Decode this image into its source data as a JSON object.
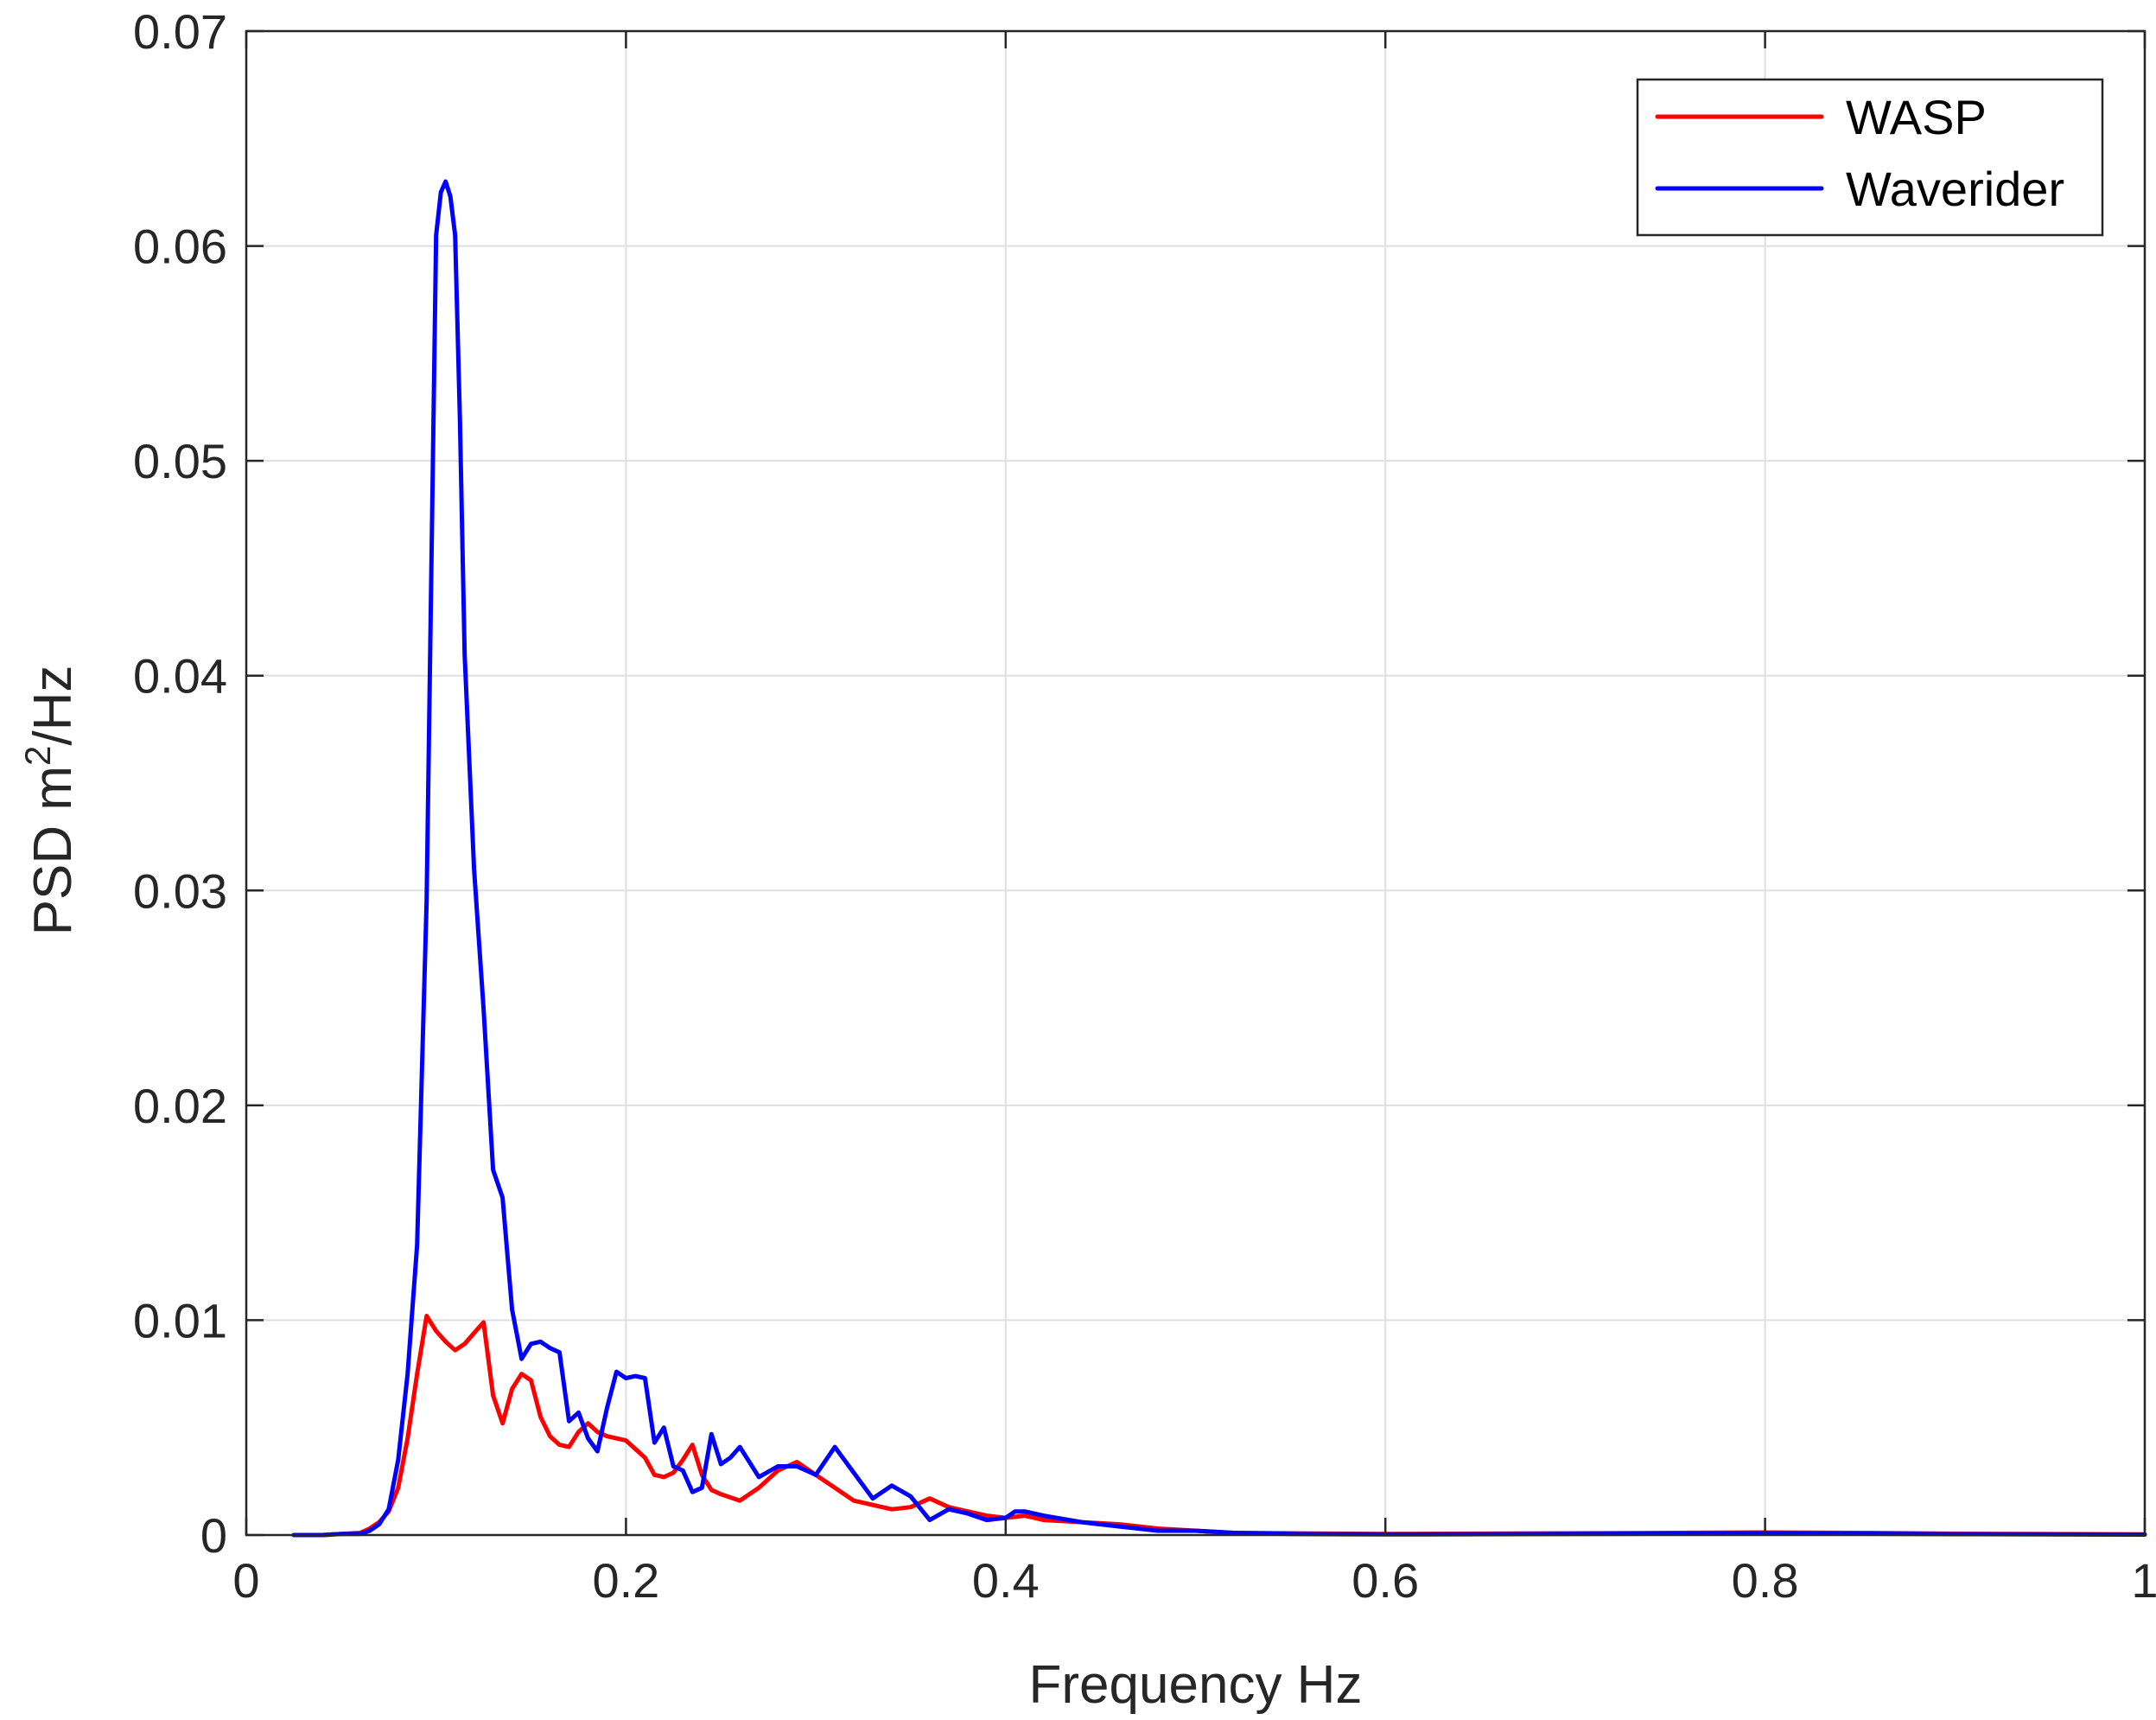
{
  "chart_data": {
    "type": "line",
    "title": "",
    "xlabel": "Frequency Hz",
    "ylabel_main": "PSD m",
    "ylabel_superscript": "2",
    "ylabel_suffix": "/Hz",
    "xlim": [
      0,
      1
    ],
    "ylim": [
      0,
      0.07
    ],
    "grid": true,
    "legend_position": "top-right",
    "x_ticks": [
      "0",
      "0.2",
      "0.4",
      "0.6",
      "0.8",
      "1"
    ],
    "y_ticks": [
      "0",
      "0.01",
      "0.02",
      "0.03",
      "0.04",
      "0.05",
      "0.06",
      "0.07"
    ],
    "series": [
      {
        "name": "WASP",
        "color": "#ff0000",
        "points": [
          [
            0.025,
            0.0
          ],
          [
            0.04,
            0.0
          ],
          [
            0.05,
            5e-05
          ],
          [
            0.06,
            0.0001
          ],
          [
            0.065,
            0.0003
          ],
          [
            0.07,
            0.0006
          ],
          [
            0.075,
            0.0011
          ],
          [
            0.08,
            0.0022
          ],
          [
            0.085,
            0.0045
          ],
          [
            0.09,
            0.0075
          ],
          [
            0.095,
            0.0102
          ],
          [
            0.1,
            0.0095
          ],
          [
            0.105,
            0.009
          ],
          [
            0.11,
            0.0086
          ],
          [
            0.115,
            0.0089
          ],
          [
            0.12,
            0.0094
          ],
          [
            0.125,
            0.0099
          ],
          [
            0.13,
            0.0065
          ],
          [
            0.135,
            0.0052
          ],
          [
            0.14,
            0.0068
          ],
          [
            0.145,
            0.0075
          ],
          [
            0.15,
            0.0072
          ],
          [
            0.155,
            0.0055
          ],
          [
            0.16,
            0.0046
          ],
          [
            0.165,
            0.0042
          ],
          [
            0.17,
            0.0041
          ],
          [
            0.175,
            0.0048
          ],
          [
            0.18,
            0.0052
          ],
          [
            0.185,
            0.0048
          ],
          [
            0.19,
            0.0046
          ],
          [
            0.2,
            0.0044
          ],
          [
            0.21,
            0.0036
          ],
          [
            0.215,
            0.0028
          ],
          [
            0.22,
            0.0027
          ],
          [
            0.225,
            0.0029
          ],
          [
            0.23,
            0.0035
          ],
          [
            0.235,
            0.0042
          ],
          [
            0.24,
            0.0028
          ],
          [
            0.245,
            0.0021
          ],
          [
            0.25,
            0.0019
          ],
          [
            0.26,
            0.0016
          ],
          [
            0.27,
            0.0022
          ],
          [
            0.28,
            0.003
          ],
          [
            0.29,
            0.0034
          ],
          [
            0.3,
            0.0028
          ],
          [
            0.31,
            0.0022
          ],
          [
            0.32,
            0.0016
          ],
          [
            0.33,
            0.0014
          ],
          [
            0.34,
            0.0012
          ],
          [
            0.35,
            0.0013
          ],
          [
            0.36,
            0.0017
          ],
          [
            0.37,
            0.0013
          ],
          [
            0.38,
            0.0011
          ],
          [
            0.39,
            0.0009
          ],
          [
            0.4,
            0.0008
          ],
          [
            0.41,
            0.0009
          ],
          [
            0.42,
            0.0007
          ],
          [
            0.44,
            0.0006
          ],
          [
            0.46,
            0.0005
          ],
          [
            0.48,
            0.0003
          ],
          [
            0.5,
            0.0002
          ],
          [
            0.52,
            0.0001
          ],
          [
            0.55,
            8e-05
          ],
          [
            0.6,
            5e-05
          ],
          [
            0.7,
            8e-05
          ],
          [
            0.8,
            0.00012
          ],
          [
            0.85,
            0.0001
          ],
          [
            0.9,
            6e-05
          ],
          [
            1.0,
            3e-05
          ]
        ]
      },
      {
        "name": "Waverider",
        "color": "#0000ff",
        "points": [
          [
            0.025,
            0.0
          ],
          [
            0.04,
            0.0
          ],
          [
            0.05,
            5e-05
          ],
          [
            0.06,
            5e-05
          ],
          [
            0.065,
            0.0002
          ],
          [
            0.07,
            0.0005
          ],
          [
            0.075,
            0.0012
          ],
          [
            0.08,
            0.0035
          ],
          [
            0.085,
            0.0075
          ],
          [
            0.09,
            0.0135
          ],
          [
            0.095,
            0.0295
          ],
          [
            0.0975,
            0.045
          ],
          [
            0.1,
            0.0605
          ],
          [
            0.1025,
            0.0625
          ],
          [
            0.105,
            0.063
          ],
          [
            0.1075,
            0.0623
          ],
          [
            0.11,
            0.0605
          ],
          [
            0.1125,
            0.052
          ],
          [
            0.115,
            0.041
          ],
          [
            0.12,
            0.031
          ],
          [
            0.125,
            0.0245
          ],
          [
            0.13,
            0.017
          ],
          [
            0.135,
            0.0157
          ],
          [
            0.14,
            0.0105
          ],
          [
            0.145,
            0.0082
          ],
          [
            0.15,
            0.0089
          ],
          [
            0.155,
            0.009
          ],
          [
            0.16,
            0.0087
          ],
          [
            0.165,
            0.0085
          ],
          [
            0.17,
            0.0053
          ],
          [
            0.175,
            0.0057
          ],
          [
            0.18,
            0.0045
          ],
          [
            0.185,
            0.0039
          ],
          [
            0.19,
            0.0059
          ],
          [
            0.195,
            0.0076
          ],
          [
            0.2,
            0.0073
          ],
          [
            0.205,
            0.0074
          ],
          [
            0.21,
            0.0073
          ],
          [
            0.215,
            0.0043
          ],
          [
            0.22,
            0.005
          ],
          [
            0.225,
            0.0032
          ],
          [
            0.23,
            0.003
          ],
          [
            0.235,
            0.002
          ],
          [
            0.24,
            0.0022
          ],
          [
            0.245,
            0.0047
          ],
          [
            0.25,
            0.0033
          ],
          [
            0.255,
            0.0036
          ],
          [
            0.26,
            0.0041
          ],
          [
            0.27,
            0.0027
          ],
          [
            0.28,
            0.0032
          ],
          [
            0.29,
            0.0032
          ],
          [
            0.3,
            0.0028
          ],
          [
            0.31,
            0.0041
          ],
          [
            0.32,
            0.0029
          ],
          [
            0.33,
            0.0017
          ],
          [
            0.34,
            0.0023
          ],
          [
            0.35,
            0.0018
          ],
          [
            0.36,
            0.0007
          ],
          [
            0.37,
            0.0012
          ],
          [
            0.38,
            0.001
          ],
          [
            0.39,
            0.0007
          ],
          [
            0.4,
            0.0008
          ],
          [
            0.405,
            0.0011
          ],
          [
            0.41,
            0.0011
          ],
          [
            0.42,
            0.0009
          ],
          [
            0.44,
            0.0006
          ],
          [
            0.46,
            0.0004
          ],
          [
            0.48,
            0.0002
          ],
          [
            0.5,
            0.0002
          ],
          [
            0.52,
            0.0001
          ],
          [
            0.55,
            5e-05
          ],
          [
            0.6,
            3e-05
          ],
          [
            0.7,
            5e-05
          ],
          [
            0.8,
            8e-05
          ],
          [
            0.85,
            6e-05
          ],
          [
            0.9,
            4e-05
          ],
          [
            1.0,
            2e-05
          ]
        ]
      }
    ]
  }
}
